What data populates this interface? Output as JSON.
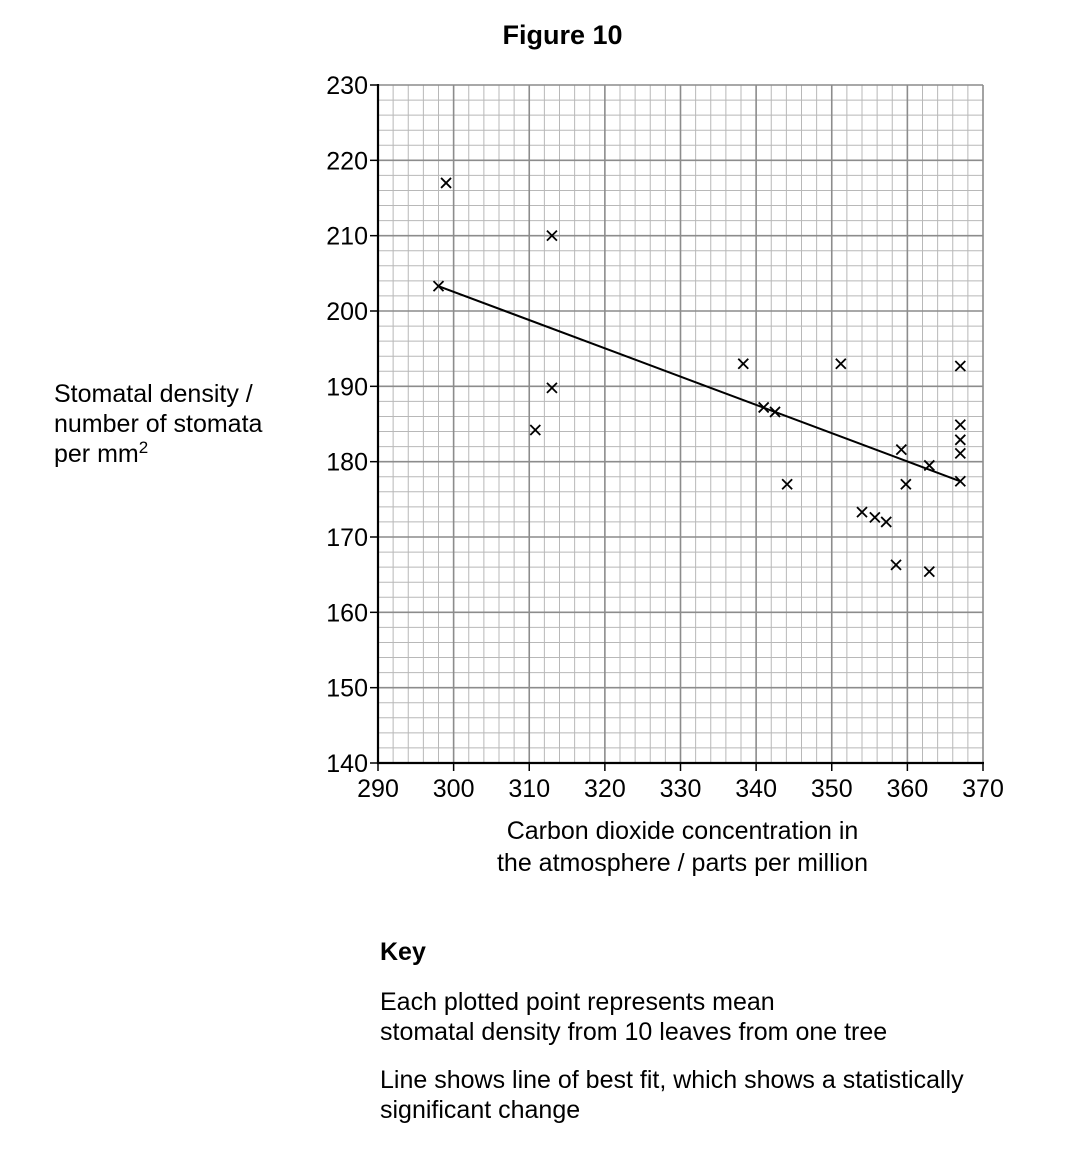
{
  "figure": {
    "title": "Figure 10",
    "ylabel_line1": "Stomatal density /",
    "ylabel_line2": "number of stomata",
    "ylabel_line3": "per mm",
    "ylabel_sup": "2",
    "xlabel_line1": "Carbon dioxide concentration in",
    "xlabel_line2": "the atmosphere / parts per million"
  },
  "key": {
    "title": "Key",
    "item1_line1": "Each plotted point represents mean",
    "item1_line2": "stomatal density from 10 leaves from one tree",
    "item2_line1": "Line shows line of best fit, which shows a statistically",
    "item2_line2": "significant change"
  },
  "colors": {
    "axis": "#000000",
    "grid_major": "#8c8c8c",
    "grid_minor": "#b8b8b8",
    "marker": "#000000",
    "fit_line": "#000000"
  },
  "chart_data": {
    "type": "scatter",
    "title": "Figure 10",
    "xlabel": "Carbon dioxide concentration in the atmosphere / parts per million",
    "ylabel": "Stomatal density / number of stomata per mm2",
    "xlim": [
      290,
      370
    ],
    "ylim": [
      140,
      230
    ],
    "x_ticks": [
      290,
      300,
      310,
      320,
      330,
      340,
      350,
      360,
      370
    ],
    "y_ticks": [
      140,
      150,
      160,
      170,
      180,
      190,
      200,
      210,
      220,
      230
    ],
    "x_minor_step": 2,
    "y_minor_step": 2,
    "grid": true,
    "marker": "x",
    "series": [
      {
        "name": "Mean stomatal density per tree",
        "points": [
          {
            "x": 299,
            "y": 217
          },
          {
            "x": 313,
            "y": 210
          },
          {
            "x": 298,
            "y": 203.3
          },
          {
            "x": 338.3,
            "y": 193
          },
          {
            "x": 351.2,
            "y": 193
          },
          {
            "x": 367,
            "y": 192.7
          },
          {
            "x": 313,
            "y": 189.8
          },
          {
            "x": 341,
            "y": 187.2
          },
          {
            "x": 342.5,
            "y": 186.6
          },
          {
            "x": 310.8,
            "y": 184.2
          },
          {
            "x": 367,
            "y": 184.9
          },
          {
            "x": 367,
            "y": 182.9
          },
          {
            "x": 367,
            "y": 181.1
          },
          {
            "x": 359.2,
            "y": 181.6
          },
          {
            "x": 362.9,
            "y": 179.5
          },
          {
            "x": 344.1,
            "y": 177
          },
          {
            "x": 359.8,
            "y": 177
          },
          {
            "x": 367,
            "y": 177.4
          },
          {
            "x": 354,
            "y": 173.3
          },
          {
            "x": 355.7,
            "y": 172.6
          },
          {
            "x": 357.2,
            "y": 172
          },
          {
            "x": 358.5,
            "y": 166.3
          },
          {
            "x": 362.9,
            "y": 165.4
          }
        ]
      }
    ],
    "best_fit_line": {
      "x1": 298,
      "y1": 203.3,
      "x2": 367,
      "y2": 177.4
    },
    "legend": {
      "title": "Key",
      "entries": [
        "Each plotted point represents mean stomatal density from 10 leaves from one tree",
        "Line shows line of best fit, which shows a statistically significant change"
      ],
      "position": "below"
    }
  }
}
